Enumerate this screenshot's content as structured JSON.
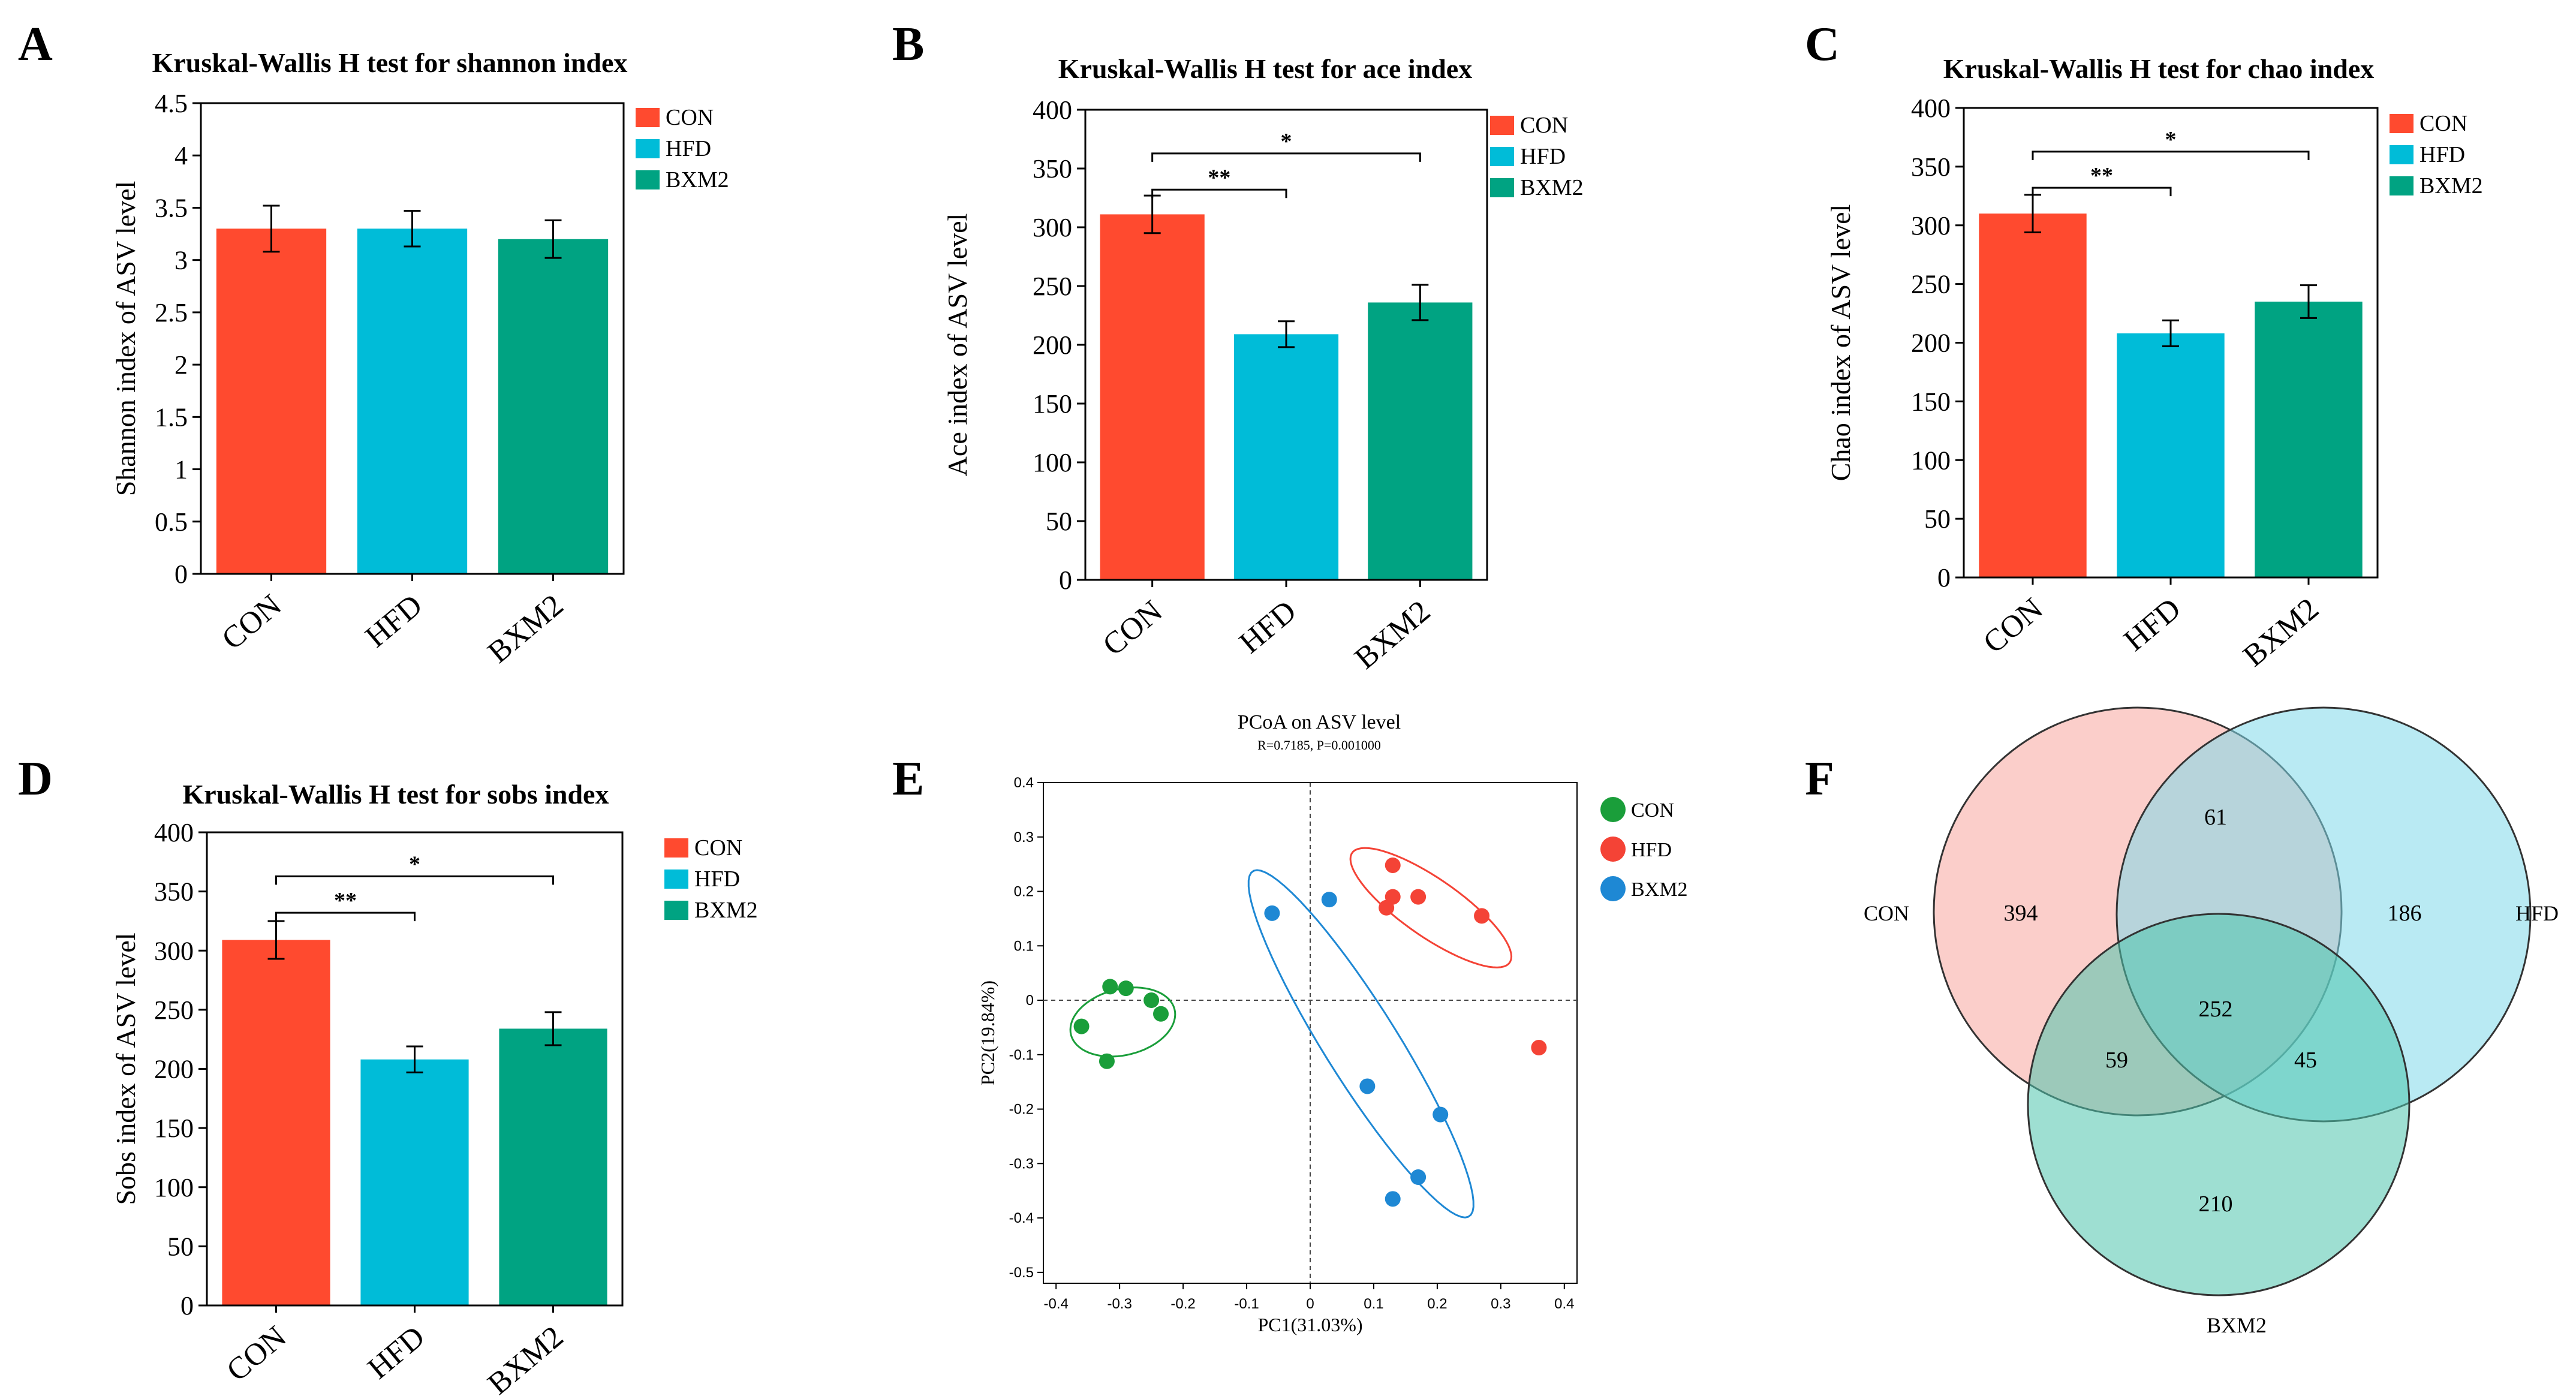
{
  "colors": {
    "CON": "#ff4a2f",
    "HFD": "#00bcd8",
    "BXM2": "#00a382",
    "pcoa_CON": "#1a9e3a",
    "pcoa_HFD": "#f44336",
    "pcoa_BXM2": "#1e88d4",
    "venn_CON": "#f8a59f",
    "venn_HFD": "#7fd8ea",
    "venn_BXM2": "#4ec5ad"
  },
  "chart_data": [
    {
      "id": "A",
      "type": "bar",
      "panel_label": "A",
      "title": "Kruskal-Wallis H test for shannon index",
      "ylabel": "Shannon index of ASV level",
      "categories": [
        "CON",
        "HFD",
        "BXM2"
      ],
      "values": [
        3.3,
        3.3,
        3.2
      ],
      "errors": [
        0.22,
        0.17,
        0.18
      ],
      "ylim": [
        0,
        4.5
      ],
      "yticks": [
        0,
        0.5,
        1,
        1.5,
        2,
        2.5,
        3,
        3.5,
        4,
        4.5
      ],
      "ytick_labels": [
        "0",
        "0.5",
        "1",
        "1.5",
        "2",
        "2.5",
        "3",
        "3.5",
        "4",
        "4.5"
      ],
      "legend": [
        "CON",
        "HFD",
        "BXM2"
      ],
      "significance": []
    },
    {
      "id": "B",
      "type": "bar",
      "panel_label": "B",
      "title": "Kruskal-Wallis H test for ace index",
      "ylabel": "Ace index of ASV level",
      "categories": [
        "CON",
        "HFD",
        "BXM2"
      ],
      "values": [
        311,
        209,
        236
      ],
      "errors": [
        16,
        11,
        15
      ],
      "ylim": [
        0,
        400
      ],
      "yticks": [
        0,
        50,
        100,
        150,
        200,
        250,
        300,
        350,
        400
      ],
      "ytick_labels": [
        "0",
        "50",
        "100",
        "150",
        "200",
        "250",
        "300",
        "350",
        "400"
      ],
      "legend": [
        "CON",
        "HFD",
        "BXM2"
      ],
      "significance": [
        {
          "from": 0,
          "to": 1,
          "label": "**",
          "level": 0
        },
        {
          "from": 0,
          "to": 2,
          "label": "*",
          "level": 1
        }
      ]
    },
    {
      "id": "C",
      "type": "bar",
      "panel_label": "C",
      "title": "Kruskal-Wallis H test for chao index",
      "ylabel": "Chao index of ASV level",
      "categories": [
        "CON",
        "HFD",
        "BXM2"
      ],
      "values": [
        310,
        208,
        235
      ],
      "errors": [
        16,
        11,
        14
      ],
      "ylim": [
        0,
        400
      ],
      "yticks": [
        0,
        50,
        100,
        150,
        200,
        250,
        300,
        350,
        400
      ],
      "ytick_labels": [
        "0",
        "50",
        "100",
        "150",
        "200",
        "250",
        "300",
        "350",
        "400"
      ],
      "legend": [
        "CON",
        "HFD",
        "BXM2"
      ],
      "significance": [
        {
          "from": 0,
          "to": 1,
          "label": "**",
          "level": 0
        },
        {
          "from": 0,
          "to": 2,
          "label": "*",
          "level": 1
        }
      ]
    },
    {
      "id": "D",
      "type": "bar",
      "panel_label": "D",
      "title": "Kruskal-Wallis H test for sobs index",
      "ylabel": "Sobs index of ASV level",
      "categories": [
        "CON",
        "HFD",
        "BXM2"
      ],
      "values": [
        309,
        208,
        234
      ],
      "errors": [
        16,
        11,
        14
      ],
      "ylim": [
        0,
        400
      ],
      "yticks": [
        0,
        50,
        100,
        150,
        200,
        250,
        300,
        350,
        400
      ],
      "ytick_labels": [
        "0",
        "50",
        "100",
        "150",
        "200",
        "250",
        "300",
        "350",
        "400"
      ],
      "legend": [
        "CON",
        "HFD",
        "BXM2"
      ],
      "significance": [
        {
          "from": 0,
          "to": 1,
          "label": "**",
          "level": 0
        },
        {
          "from": 0,
          "to": 2,
          "label": "*",
          "level": 1
        }
      ]
    },
    {
      "id": "E",
      "type": "scatter",
      "panel_label": "E",
      "title": "PCoA on ASV level",
      "subtitle": "R=0.7185, P=0.001000",
      "xlabel": "PC1(31.03%)",
      "ylabel": "PC2(19.84%)",
      "xlim": [
        -0.42,
        0.42
      ],
      "ylim": [
        -0.52,
        0.4
      ],
      "xticks": [
        -0.4,
        -0.3,
        -0.2,
        -0.1,
        0,
        0.1,
        0.2,
        0.3,
        0.4
      ],
      "xtick_labels": [
        "-0.4",
        "-0.3",
        "-0.2",
        "-0.1",
        "0",
        "0.1",
        "0.2",
        "0.3",
        "0.4"
      ],
      "yticks": [
        -0.5,
        -0.4,
        -0.3,
        -0.2,
        -0.1,
        0,
        0.1,
        0.2,
        0.3,
        0.4
      ],
      "ytick_labels": [
        "-0.5",
        "-0.4",
        "-0.3",
        "-0.2",
        "-0.1",
        "0",
        "0.1",
        "0.2",
        "0.3",
        "0.4"
      ],
      "series": [
        {
          "name": "CON",
          "x": [
            -0.315,
            -0.29,
            -0.25,
            -0.235,
            -0.36,
            -0.32
          ],
          "y": [
            0.025,
            0.022,
            0.0,
            -0.025,
            -0.048,
            -0.112
          ],
          "ellipse": {
            "cx": -0.295,
            "cy": -0.04,
            "rx": 0.085,
            "ry": 0.06,
            "angle": 20
          }
        },
        {
          "name": "HFD",
          "x": [
            0.13,
            0.13,
            0.17,
            0.12,
            0.27,
            0.36
          ],
          "y": [
            0.248,
            0.19,
            0.19,
            0.17,
            0.155,
            -0.087
          ],
          "ellipse": {
            "cx": 0.19,
            "cy": 0.17,
            "rx": 0.16,
            "ry": 0.05,
            "angle": -40
          }
        },
        {
          "name": "BXM2",
          "x": [
            0.03,
            -0.06,
            0.09,
            0.205,
            0.17,
            0.13
          ],
          "y": [
            0.185,
            0.16,
            -0.158,
            -0.21,
            -0.325,
            -0.365
          ],
          "ellipse": {
            "cx": 0.08,
            "cy": -0.08,
            "rx": 0.36,
            "ry": 0.06,
            "angle": -62
          }
        }
      ],
      "legend": [
        "CON",
        "HFD",
        "BXM2"
      ]
    },
    {
      "id": "F",
      "type": "venn",
      "panel_label": "F",
      "sets": [
        "CON",
        "HFD",
        "BXM2"
      ],
      "regions": {
        "CON_only": "394",
        "HFD_only": "186",
        "BXM2_only": "210",
        "CON_HFD": "61",
        "CON_BXM2": "59",
        "HFD_BXM2": "45",
        "all": "252"
      }
    }
  ]
}
